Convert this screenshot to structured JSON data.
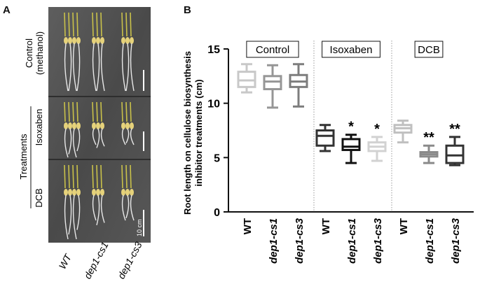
{
  "panel_a": {
    "letter": "A",
    "row_labels": [
      {
        "lines": [
          "Control",
          "(methanol)"
        ]
      },
      {
        "lines": [
          "Isoxaben"
        ]
      },
      {
        "lines": [
          "DCB"
        ]
      }
    ],
    "group_label": "Treatments",
    "scale_bar_label": "10 cm",
    "genotypes": [
      "WT",
      "dep1-cs1",
      "dep1-cs3"
    ]
  },
  "panel_b": {
    "letter": "B",
    "chart_data": {
      "type": "box",
      "ylabel_lines": [
        "Root length on cellulose biosynthesis",
        "inhibitor treatments (cm)"
      ],
      "xlabel": "",
      "ylim": [
        0,
        15
      ],
      "yticks": [
        0,
        5,
        10,
        15
      ],
      "groups": [
        "Control",
        "Isoxaben",
        "DCB"
      ],
      "categories": [
        "WT",
        "dep1-cs1",
        "dep1-cs3"
      ],
      "colors": {
        "WT": "#c8c8c8",
        "dep1-cs1": "#969696",
        "dep1-cs3": "#d2d2d2"
      },
      "boxes": [
        {
          "group": "Control",
          "genotype": "WT",
          "min": 11.0,
          "q1": 11.5,
          "median": 12.1,
          "q3": 12.9,
          "max": 13.6,
          "sig": "",
          "color": "#c8c8c8"
        },
        {
          "group": "Control",
          "genotype": "dep1-cs1",
          "min": 9.6,
          "q1": 11.3,
          "median": 12.0,
          "q3": 12.5,
          "max": 13.5,
          "sig": "",
          "color": "#969696"
        },
        {
          "group": "Control",
          "genotype": "dep1-cs3",
          "min": 9.7,
          "q1": 11.5,
          "median": 12.0,
          "q3": 12.6,
          "max": 13.6,
          "sig": "",
          "color": "#7d7d7d"
        },
        {
          "group": "Isoxaben",
          "genotype": "WT",
          "min": 5.6,
          "q1": 6.1,
          "median": 7.0,
          "q3": 7.5,
          "max": 8.0,
          "sig": "",
          "color": "#333333"
        },
        {
          "group": "Isoxaben",
          "genotype": "dep1-cs1",
          "min": 4.5,
          "q1": 5.7,
          "median": 6.0,
          "q3": 6.7,
          "max": 7.1,
          "sig": "*",
          "color": "#111111"
        },
        {
          "group": "Isoxaben",
          "genotype": "dep1-cs3",
          "min": 4.7,
          "q1": 5.6,
          "median": 6.0,
          "q3": 6.4,
          "max": 6.9,
          "sig": "*",
          "color": "#d2d2d2"
        },
        {
          "group": "DCB",
          "genotype": "WT",
          "min": 6.4,
          "q1": 7.3,
          "median": 7.7,
          "q3": 8.0,
          "max": 8.4,
          "sig": "",
          "color": "#c0c0c0"
        },
        {
          "group": "DCB",
          "genotype": "dep1-cs1",
          "min": 4.5,
          "q1": 5.1,
          "median": 5.3,
          "q3": 5.5,
          "max": 6.1,
          "sig": "**",
          "color": "#8a8a8a"
        },
        {
          "group": "DCB",
          "genotype": "dep1-cs3",
          "min": 4.3,
          "q1": 4.5,
          "median": 5.2,
          "q3": 6.1,
          "max": 6.9,
          "sig": "**",
          "color": "#333333"
        }
      ]
    }
  }
}
